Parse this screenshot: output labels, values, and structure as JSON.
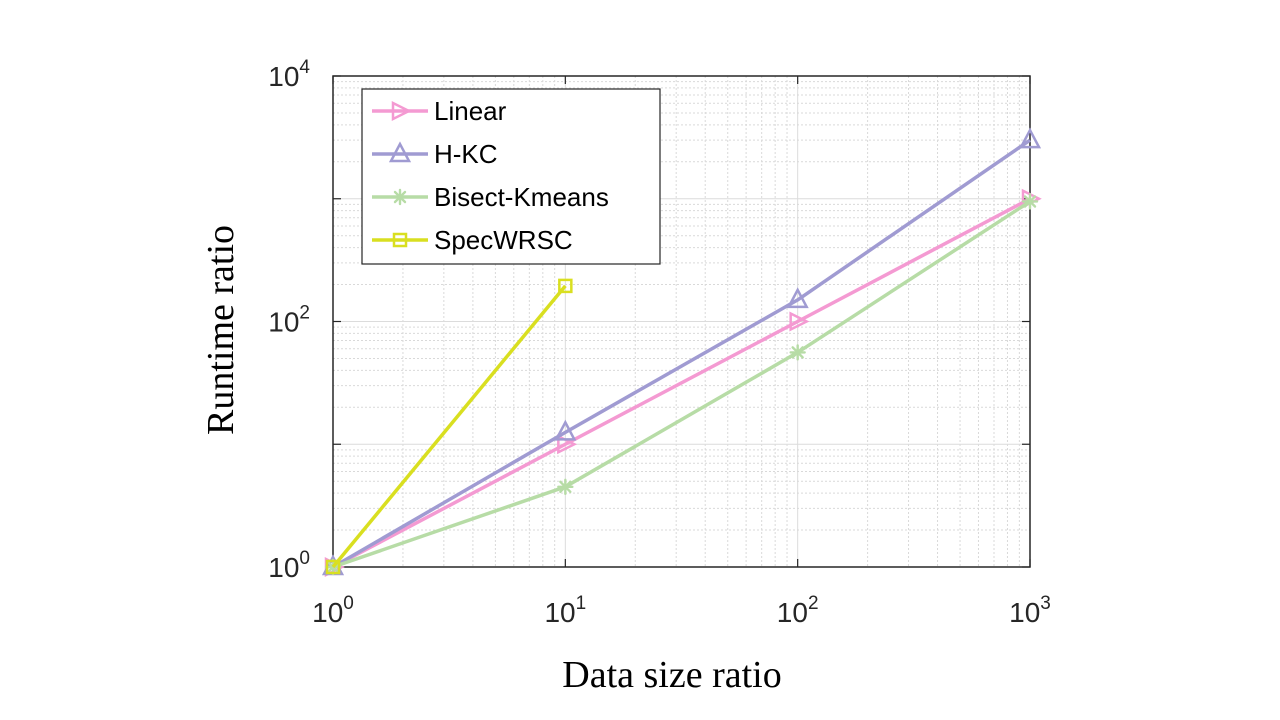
{
  "chart_data": {
    "type": "line",
    "xscale": "log",
    "yscale": "log",
    "xlabel": "Data size ratio",
    "ylabel": "Runtime ratio",
    "xlim": [
      1,
      1000
    ],
    "ylim": [
      1,
      10000
    ],
    "grid": true,
    "legend_position": "top-left",
    "x_ticks": [
      {
        "base": "10",
        "exp": "0"
      },
      {
        "base": "10",
        "exp": "1"
      },
      {
        "base": "10",
        "exp": "2"
      },
      {
        "base": "10",
        "exp": "3"
      }
    ],
    "y_ticks": [
      {
        "base": "10",
        "exp": "0"
      },
      {
        "base": "10",
        "exp": "2"
      },
      {
        "base": "10",
        "exp": "4"
      }
    ],
    "series": [
      {
        "name": "Linear",
        "color": "#f49ad2",
        "marker": "triangle-right",
        "x": [
          1,
          10,
          100,
          1000
        ],
        "y": [
          1,
          10,
          100,
          1000
        ]
      },
      {
        "name": "H-KC",
        "color": "#a09bd2",
        "marker": "triangle-up",
        "x": [
          1,
          10,
          100,
          1000
        ],
        "y": [
          1,
          12.5,
          150,
          3000
        ]
      },
      {
        "name": "Bisect-Kmeans",
        "color": "#b7dca6",
        "marker": "asterisk",
        "x": [
          1,
          10,
          100,
          1000
        ],
        "y": [
          1,
          4.5,
          56,
          950
        ]
      },
      {
        "name": "SpecWRSC",
        "color": "#d9df20",
        "marker": "square",
        "x": [
          1,
          10
        ],
        "y": [
          1,
          195
        ]
      }
    ]
  }
}
